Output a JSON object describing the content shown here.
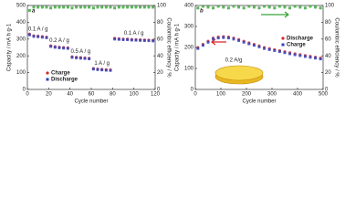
{
  "chart_data": [
    {
      "type": "scatter",
      "panel": "a",
      "xlabel": "Cycle number",
      "ylabel": "Capacity / mA h g-1",
      "y2label": "Coulombic efficiency / %",
      "xlim": [
        0,
        120
      ],
      "xticks": [
        0,
        20,
        40,
        60,
        80,
        100,
        120
      ],
      "ylim": [
        0,
        500
      ],
      "yticks": [
        0,
        100,
        200,
        300,
        400,
        500
      ],
      "y2lim": [
        0,
        100
      ],
      "y2ticks": [
        0,
        20,
        40,
        60,
        80,
        100
      ],
      "legend": "lower left",
      "x": [
        2,
        6,
        10,
        14,
        18,
        22,
        26,
        30,
        34,
        38,
        42,
        46,
        50,
        54,
        58,
        62,
        66,
        70,
        74,
        78,
        82,
        86,
        90,
        94,
        98,
        102,
        106,
        110,
        114,
        118
      ],
      "series": [
        {
          "name": "Charge",
          "color": "#d9262a",
          "marker": "circle",
          "values": [
            330,
            320,
            318,
            315,
            312,
            260,
            255,
            252,
            250,
            248,
            195,
            192,
            190,
            188,
            186,
            125,
            122,
            120,
            118,
            117,
            305,
            302,
            300,
            300,
            298,
            297,
            296,
            295,
            294,
            293
          ]
        },
        {
          "name": "Discharge",
          "color": "#2f3fb8",
          "marker": "square",
          "values": [
            325,
            316,
            314,
            311,
            308,
            256,
            251,
            248,
            246,
            244,
            191,
            188,
            186,
            184,
            182,
            121,
            118,
            116,
            114,
            113,
            300,
            298,
            296,
            296,
            294,
            293,
            292,
            291,
            290,
            289
          ]
        },
        {
          "color": "#3aa53a",
          "marker": "square",
          "axis": "y2",
          "values": [
            94,
            98,
            98,
            98,
            98,
            97,
            98,
            98,
            98,
            98,
            97,
            98,
            98,
            98,
            98,
            97,
            98,
            98,
            98,
            98,
            97,
            98,
            98,
            98,
            98,
            98,
            98,
            98,
            98,
            98
          ]
        }
      ],
      "annotations": [
        {
          "text": "0.1 A / g",
          "x": 10,
          "y": 360
        },
        {
          "text": "0.2 A / g",
          "x": 30,
          "y": 290
        },
        {
          "text": "0.5 A / g",
          "x": 50,
          "y": 225
        },
        {
          "text": "1 A / g",
          "x": 70,
          "y": 155
        },
        {
          "text": "0.1 A / g",
          "x": 100,
          "y": 335
        }
      ]
    },
    {
      "type": "scatter",
      "panel": "b",
      "xlabel": "Cycle number",
      "ylabel": "Capacity / mA h g-1",
      "y2label": "Coulombic efficiency / %",
      "xlim": [
        0,
        500
      ],
      "xticks": [
        0,
        100,
        200,
        300,
        400,
        500
      ],
      "ylim": [
        0,
        400
      ],
      "yticks": [
        0,
        100,
        200,
        300,
        400
      ],
      "y2lim": [
        0,
        100
      ],
      "y2ticks": [
        0,
        20,
        40,
        60,
        80,
        100
      ],
      "legend": "center right",
      "x": [
        10,
        30,
        50,
        70,
        90,
        110,
        130,
        150,
        170,
        190,
        210,
        230,
        250,
        270,
        290,
        310,
        330,
        350,
        370,
        390,
        410,
        430,
        450,
        470,
        490
      ],
      "series": [
        {
          "name": "Discharge",
          "color": "#d9262a",
          "marker": "circle",
          "values": [
            200,
            215,
            230,
            245,
            250,
            252,
            250,
            245,
            238,
            230,
            222,
            215,
            208,
            200,
            195,
            190,
            185,
            180,
            175,
            170,
            166,
            162,
            158,
            154,
            150
          ]
        },
        {
          "name": "Charge",
          "color": "#2f3fb8",
          "marker": "square",
          "values": [
            195,
            210,
            225,
            240,
            245,
            247,
            245,
            240,
            233,
            225,
            217,
            210,
            203,
            195,
            190,
            185,
            180,
            175,
            170,
            165,
            161,
            157,
            153,
            149,
            145
          ]
        },
        {
          "color": "#3aa53a",
          "marker": "square",
          "axis": "y2",
          "values": [
            97,
            99,
            98,
            97,
            99,
            98,
            97,
            99,
            98,
            97,
            99,
            98,
            97,
            99,
            98,
            97,
            99,
            98,
            97,
            99,
            98,
            97,
            99,
            98,
            97
          ]
        }
      ],
      "annotations": [
        {
          "text": "0.2 A/g",
          "x": 150,
          "y": 140
        }
      ]
    }
  ]
}
